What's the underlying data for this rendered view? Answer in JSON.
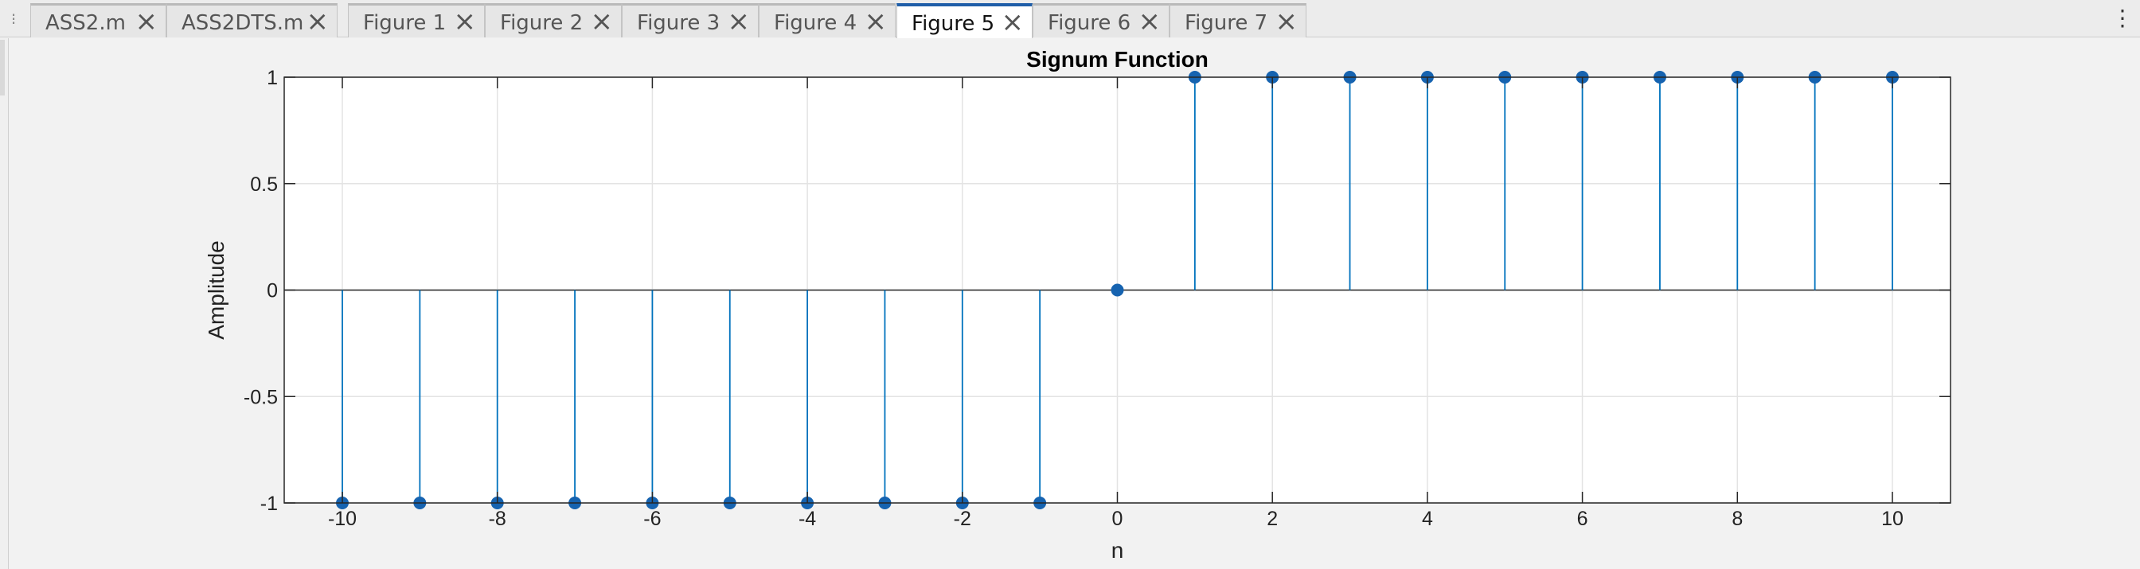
{
  "tabs": [
    {
      "label": "ASS2.m",
      "active": false
    },
    {
      "label": "ASS2DTS.m",
      "active": false
    },
    {
      "label": "Figure 1",
      "active": false
    },
    {
      "label": "Figure 2",
      "active": false
    },
    {
      "label": "Figure 3",
      "active": false
    },
    {
      "label": "Figure 4",
      "active": false
    },
    {
      "label": "Figure 5",
      "active": true
    },
    {
      "label": "Figure 6",
      "active": false
    },
    {
      "label": "Figure 7",
      "active": false
    }
  ],
  "icons": {
    "grip": "grip-icon",
    "close": "close-icon",
    "overflow": "more-vertical-icon"
  },
  "colors": {
    "stem": "#0072bd",
    "marker": "#1663b0",
    "accent": "#1f5ea8"
  },
  "chart_data": {
    "type": "stem",
    "title": "Signum Function",
    "xlabel": "n",
    "ylabel": "Amplitude",
    "x": [
      -10,
      -9,
      -8,
      -7,
      -6,
      -5,
      -4,
      -3,
      -2,
      -1,
      0,
      1,
      2,
      3,
      4,
      5,
      6,
      7,
      8,
      9,
      10
    ],
    "y": [
      -1,
      -1,
      -1,
      -1,
      -1,
      -1,
      -1,
      -1,
      -1,
      -1,
      0,
      1,
      1,
      1,
      1,
      1,
      1,
      1,
      1,
      1,
      1
    ],
    "xlim": [
      -10.75,
      10.75
    ],
    "ylim": [
      -1,
      1
    ],
    "xticks": [
      "-10",
      "-8",
      "-6",
      "-4",
      "-2",
      "0",
      "2",
      "4",
      "6",
      "8",
      "10"
    ],
    "yticks": [
      "-1",
      "-0.5",
      "0",
      "0.5",
      "1"
    ],
    "grid": true,
    "legend": "none"
  }
}
